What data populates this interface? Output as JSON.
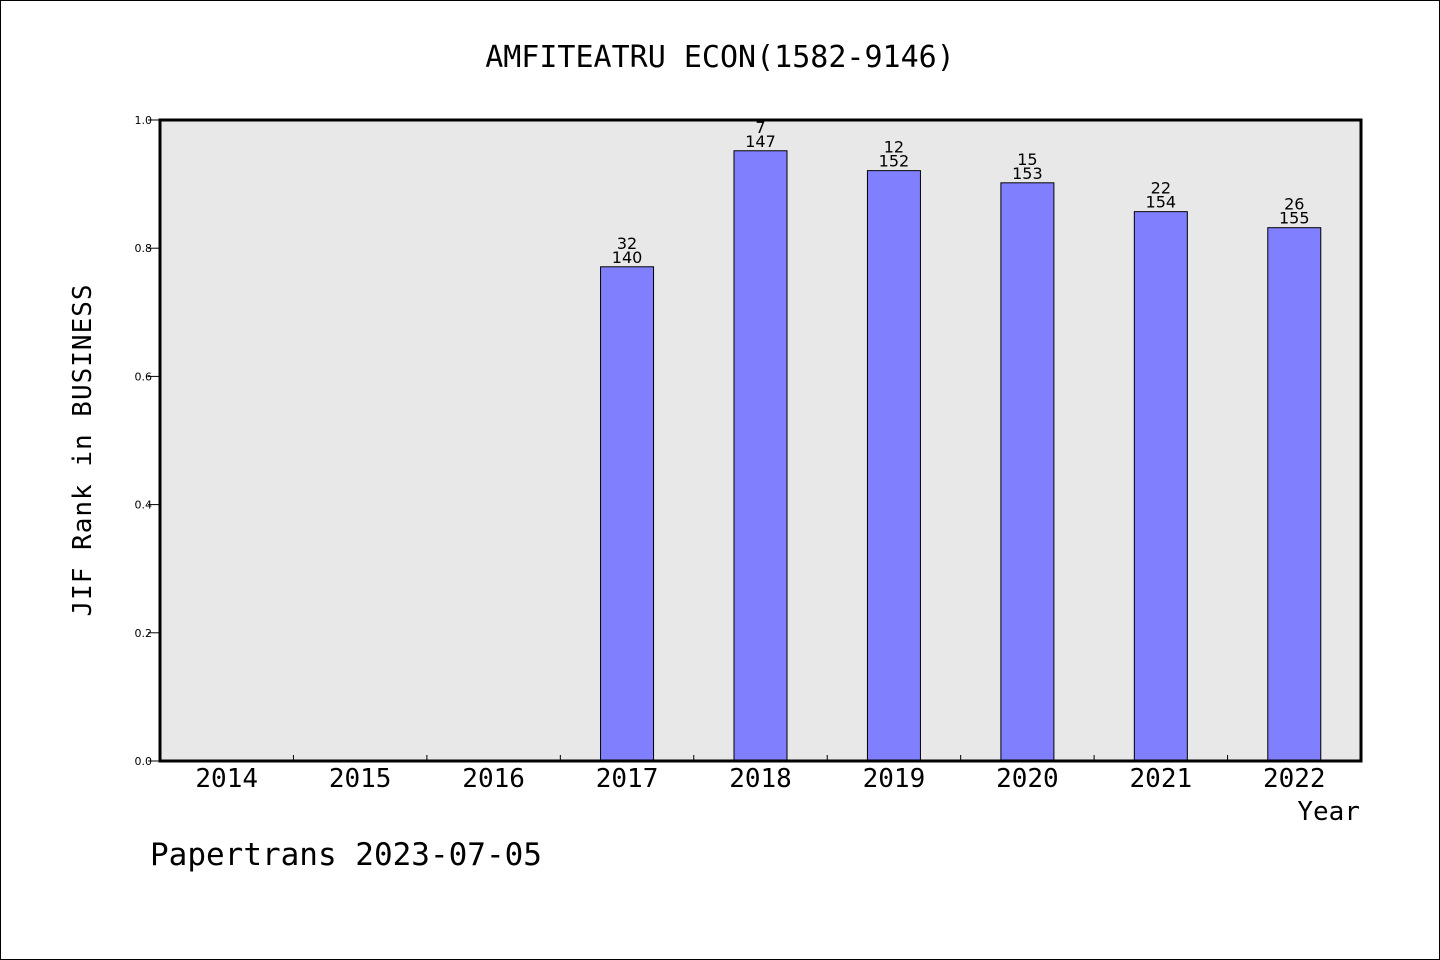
{
  "chart_data": {
    "type": "bar",
    "title": "AMFITEATRU ECON(1582-9146)",
    "xlabel": "Year",
    "ylabel": "JIF Rank in BUSINESS",
    "ylim": [
      0,
      1.0
    ],
    "yticks": [
      "0.0",
      "0.2",
      "0.4",
      "0.6",
      "0.8",
      "1.0"
    ],
    "categories": [
      "2014",
      "2015",
      "2016",
      "2017",
      "2018",
      "2019",
      "2020",
      "2021",
      "2022"
    ],
    "values": [
      null,
      null,
      null,
      0.771,
      0.952,
      0.921,
      0.902,
      0.857,
      0.832
    ],
    "rank": [
      null,
      null,
      null,
      "32",
      "7",
      "12",
      "15",
      "22",
      "26"
    ],
    "total": [
      null,
      null,
      null,
      "140",
      "147",
      "152",
      "153",
      "154",
      "155"
    ],
    "bar_color": "#8080ff",
    "plot_background": "#e8e8e8",
    "grid": false,
    "legend": "none"
  },
  "footer": {
    "credit": "Papertrans 2023-07-05"
  }
}
